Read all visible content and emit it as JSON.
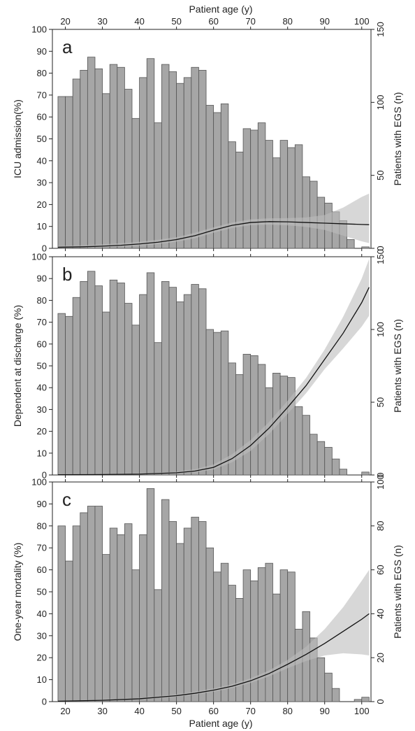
{
  "top_axis_label": "Patient age (y)",
  "bottom_axis_label": "Patient age (y)",
  "x_ticks": [
    20,
    30,
    40,
    50,
    60,
    70,
    80,
    90,
    100
  ],
  "x_range": [
    16.5,
    102.5
  ],
  "colors": {
    "bar_fill": "#a6a6a6",
    "bar_stroke": "#555555",
    "line": "#111111",
    "band": "#bdbdbd"
  },
  "chart_data": [
    {
      "type": "bar",
      "panel_label": "a",
      "ylabel_left": "ICU admission(%)",
      "ylabel_right": "Patients with EGS (n)",
      "left_ylim": [
        0,
        100
      ],
      "left_ticks": [
        0,
        10,
        20,
        30,
        40,
        50,
        60,
        70,
        80,
        90,
        100
      ],
      "right_ylim": [
        0,
        150
      ],
      "right_ticks": [
        0,
        50,
        100,
        150
      ],
      "bar_start_age": 18,
      "bar_width_years": 2,
      "bar_counts": [
        104,
        104,
        116,
        122,
        131,
        123,
        106,
        126,
        124,
        109,
        89,
        117,
        130,
        86,
        126,
        121,
        113,
        117,
        124,
        122,
        98,
        93,
        99,
        73,
        66,
        82,
        81,
        86,
        74,
        62,
        74,
        69,
        71,
        49,
        46,
        35,
        31,
        25,
        19,
        6,
        0,
        1
      ],
      "curve_age": [
        18,
        25,
        30,
        35,
        40,
        45,
        50,
        55,
        60,
        65,
        70,
        75,
        80,
        85,
        90,
        95,
        100,
        102
      ],
      "curve_pct": [
        0.5,
        0.7,
        1.0,
        1.4,
        2.0,
        2.8,
        4.0,
        5.8,
        8.3,
        10.5,
        11.8,
        12.2,
        12.1,
        11.8,
        11.5,
        11.2,
        10.9,
        10.8
      ],
      "ci_low_pct": [
        0.2,
        0.3,
        0.5,
        0.8,
        1.2,
        1.9,
        3.0,
        4.6,
        7.1,
        9.3,
        10.6,
        10.8,
        10.5,
        9.8,
        8.4,
        5.8,
        3.2,
        2.4
      ],
      "ci_high_pct": [
        1.1,
        1.4,
        1.8,
        2.3,
        3.0,
        3.9,
        5.1,
        7.1,
        9.6,
        11.8,
        13.2,
        13.7,
        13.8,
        14.1,
        15.2,
        18.6,
        23.5,
        25.0
      ]
    },
    {
      "type": "bar",
      "panel_label": "b",
      "ylabel_left": "Dependent at discharge (%)",
      "ylabel_right": "Patients with EGS (n)",
      "left_ylim": [
        0,
        100
      ],
      "left_ticks": [
        0,
        10,
        20,
        30,
        40,
        50,
        60,
        70,
        80,
        90,
        100
      ],
      "right_ylim": [
        0,
        150
      ],
      "right_ticks": [
        0,
        50,
        100,
        150
      ],
      "bar_start_age": 18,
      "bar_width_years": 2,
      "bar_counts": [
        111,
        109,
        122,
        133,
        140,
        130,
        112,
        134,
        132,
        118,
        103,
        124,
        139,
        91,
        133,
        129,
        119,
        124,
        131,
        128,
        100,
        98,
        99,
        77,
        69,
        83,
        82,
        76,
        60,
        70,
        68,
        67,
        47,
        41,
        28,
        23,
        19,
        11,
        4,
        0,
        0,
        2
      ],
      "curve_age": [
        18,
        30,
        40,
        50,
        55,
        60,
        65,
        70,
        75,
        80,
        85,
        90,
        95,
        100,
        102
      ],
      "curve_pct": [
        0.1,
        0.2,
        0.4,
        1.0,
        1.8,
        3.5,
        7.5,
        13.5,
        21.5,
        31.0,
        41.0,
        53.0,
        65.0,
        79.0,
        86.0
      ],
      "ci_low_pct": [
        0.0,
        0.1,
        0.2,
        0.6,
        1.2,
        2.5,
        5.8,
        11.0,
        18.8,
        28.0,
        37.5,
        48.5,
        58.0,
        68.0,
        73.0
      ],
      "ci_high_pct": [
        0.2,
        0.4,
        0.7,
        1.5,
        2.6,
        4.8,
        9.5,
        16.0,
        24.3,
        34.0,
        44.5,
        57.5,
        72.5,
        90.0,
        99.0
      ]
    },
    {
      "type": "bar",
      "panel_label": "c",
      "ylabel_left": "One-year mortality (%)",
      "ylabel_right": "Patients with EGS (n)",
      "left_ylim": [
        0,
        100
      ],
      "left_ticks": [
        0,
        10,
        20,
        30,
        40,
        50,
        60,
        70,
        80,
        90,
        100
      ],
      "right_ylim": [
        0,
        100
      ],
      "right_ticks": [
        0,
        20,
        40,
        60,
        80,
        100
      ],
      "bar_start_age": 18,
      "bar_width_years": 2,
      "bar_counts": [
        80,
        64,
        80,
        86,
        89,
        89,
        67,
        79,
        76,
        81,
        60,
        76,
        97,
        51,
        92,
        82,
        72,
        79,
        84,
        82,
        70,
        59,
        63,
        53,
        47,
        60,
        55,
        61,
        63,
        49,
        60,
        59,
        33,
        41,
        29,
        20,
        13,
        6,
        0,
        0,
        1,
        2
      ],
      "curve_age": [
        18,
        30,
        40,
        50,
        55,
        60,
        65,
        70,
        75,
        80,
        85,
        90,
        95,
        100,
        102
      ],
      "curve_pct": [
        0.2,
        0.6,
        1.3,
        2.7,
        3.8,
        5.2,
        7.0,
        9.5,
        12.8,
        17.0,
        21.5,
        26.5,
        32.0,
        37.5,
        40.0
      ],
      "ci_low_pct": [
        0.1,
        0.4,
        1.0,
        2.2,
        3.2,
        4.5,
        6.2,
        8.5,
        11.5,
        15.2,
        18.5,
        21.0,
        22.0,
        21.5,
        21.0
      ],
      "ci_high_pct": [
        0.4,
        0.9,
        1.7,
        3.3,
        4.5,
        6.0,
        7.9,
        10.6,
        14.2,
        19.0,
        25.0,
        33.0,
        43.0,
        55.0,
        60.0
      ]
    }
  ]
}
